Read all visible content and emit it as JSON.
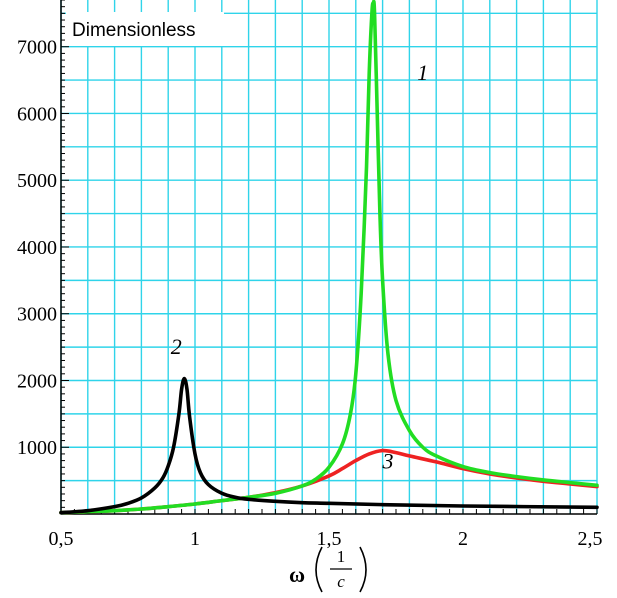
{
  "chart_data": {
    "type": "line",
    "ylabel": "Dimensionless",
    "xlabel": "ω",
    "xunit_numerator": "1",
    "xunit_denominator": "c",
    "xlim": [
      0.5,
      2.5
    ],
    "ylim": [
      0,
      7700
    ],
    "x_ticks": [
      {
        "value": 0.5,
        "label": "0,5"
      },
      {
        "value": 1.0,
        "label": "1"
      },
      {
        "value": 1.5,
        "label": "1,5"
      },
      {
        "value": 2.0,
        "label": "2"
      },
      {
        "value": 2.5,
        "label": "2,5"
      }
    ],
    "y_ticks": [
      {
        "value": 1000,
        "label": "1000"
      },
      {
        "value": 2000,
        "label": "2000"
      },
      {
        "value": 3000,
        "label": "3000"
      },
      {
        "value": 4000,
        "label": "4000"
      },
      {
        "value": 5000,
        "label": "5000"
      },
      {
        "value": 6000,
        "label": "6000"
      },
      {
        "value": 7000,
        "label": "7000"
      }
    ],
    "grid": true,
    "series": [
      {
        "name": "1",
        "color": "#22dd22",
        "peak": {
          "x": 1.665,
          "y": 7650
        },
        "label_at": {
          "x": 1.85,
          "y": 6500
        },
        "x": [
          0.5,
          0.6,
          0.7,
          0.8,
          0.9,
          1.0,
          1.1,
          1.2,
          1.3,
          1.4,
          1.45,
          1.5,
          1.55,
          1.58,
          1.6,
          1.62,
          1.64,
          1.65,
          1.66,
          1.665,
          1.67,
          1.68,
          1.69,
          1.7,
          1.72,
          1.75,
          1.8,
          1.85,
          1.9,
          2.0,
          2.1,
          2.2,
          2.3,
          2.4,
          2.5
        ],
        "y": [
          20,
          35,
          50,
          75,
          110,
          150,
          200,
          250,
          310,
          420,
          520,
          700,
          1050,
          1500,
          2100,
          3300,
          5200,
          6600,
          7500,
          7650,
          7500,
          6000,
          4500,
          3500,
          2400,
          1700,
          1250,
          1000,
          870,
          710,
          620,
          560,
          510,
          470,
          430
        ]
      },
      {
        "name": "2",
        "color": "#000000",
        "peak": {
          "x": 0.96,
          "y": 2030
        },
        "label_at": {
          "x": 0.93,
          "y": 2400
        },
        "x": [
          0.5,
          0.6,
          0.7,
          0.75,
          0.8,
          0.85,
          0.88,
          0.9,
          0.92,
          0.94,
          0.95,
          0.96,
          0.97,
          0.98,
          1.0,
          1.02,
          1.05,
          1.1,
          1.15,
          1.2,
          1.3,
          1.4,
          1.5,
          1.7,
          2.0,
          2.5
        ],
        "y": [
          20,
          50,
          110,
          160,
          240,
          390,
          540,
          720,
          1000,
          1500,
          1870,
          2030,
          1870,
          1450,
          900,
          620,
          440,
          310,
          250,
          220,
          190,
          170,
          160,
          140,
          120,
          100
        ]
      },
      {
        "name": "3",
        "color": "#ee2222",
        "peak": {
          "x": 1.7,
          "y": 950
        },
        "label_at": {
          "x": 1.72,
          "y": 680
        },
        "x": [
          0.5,
          0.6,
          0.7,
          0.8,
          0.9,
          1.0,
          1.1,
          1.2,
          1.3,
          1.4,
          1.5,
          1.55,
          1.6,
          1.65,
          1.7,
          1.75,
          1.8,
          1.9,
          2.0,
          2.1,
          2.2,
          2.3,
          2.4,
          2.5
        ],
        "y": [
          20,
          35,
          50,
          75,
          110,
          150,
          200,
          250,
          320,
          420,
          570,
          680,
          800,
          900,
          950,
          920,
          870,
          780,
          680,
          600,
          540,
          490,
          450,
          410
        ]
      }
    ]
  }
}
